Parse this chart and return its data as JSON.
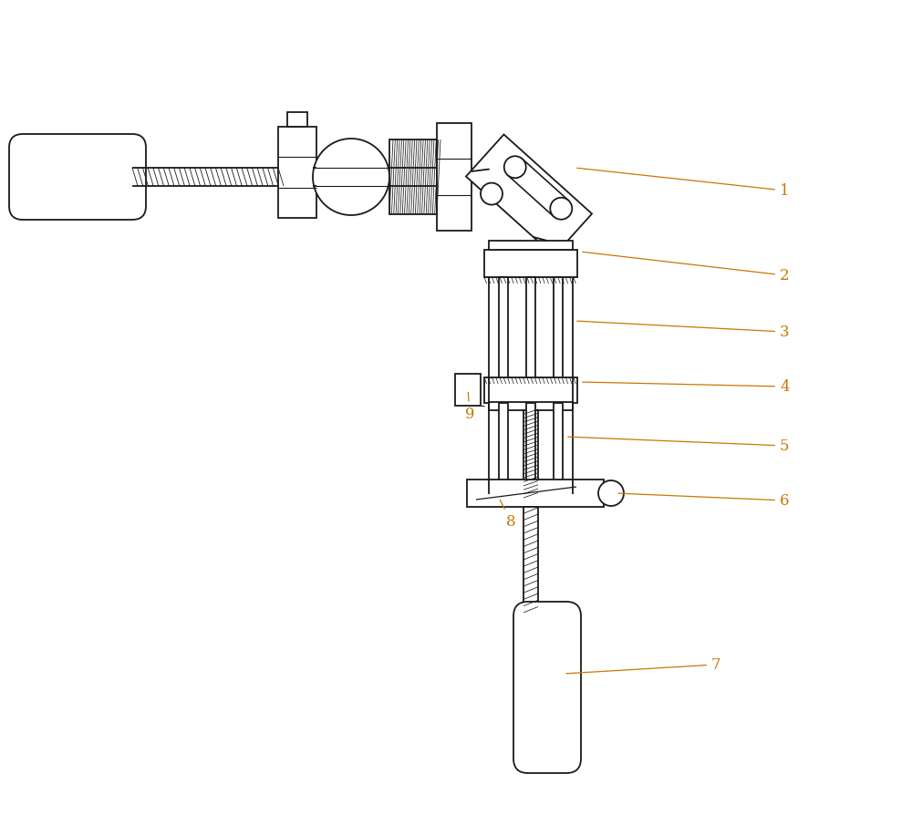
{
  "bg_color": "#ffffff",
  "line_color": "#1a1a1a",
  "label_color": "#c87800",
  "fig_width": 10.0,
  "fig_height": 8.95,
  "lw": 1.3
}
